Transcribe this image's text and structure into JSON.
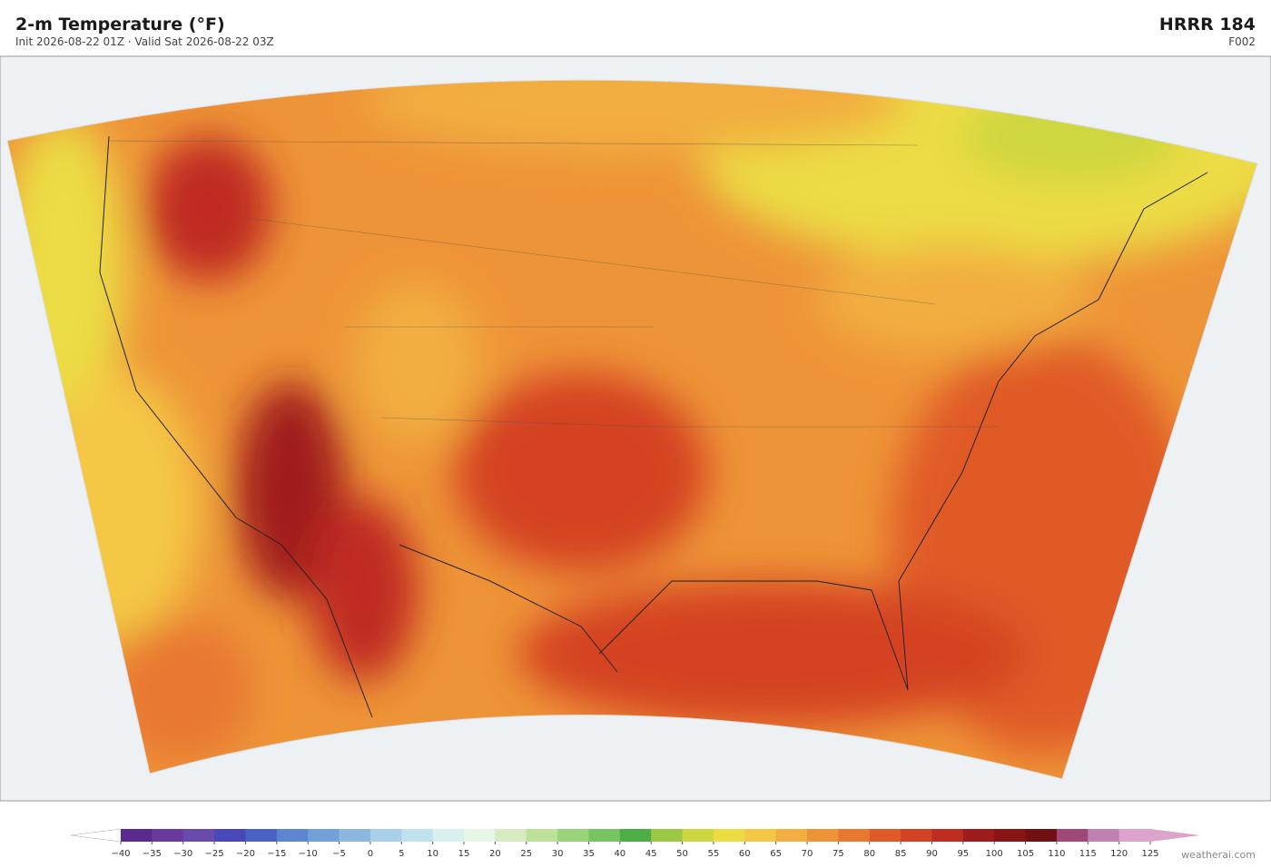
{
  "header": {
    "title": "2-m Temperature  (°F)",
    "subtitle": "Init 2026-08-22 01Z   ·   Valid Sat 2026-08-22 03Z",
    "model": "HRRR  184",
    "forecast_hour": "F002"
  },
  "colorbar": {
    "ticks": [
      "−40",
      "−35",
      "−30",
      "−25",
      "−20",
      "−15",
      "−10",
      "−5",
      "0",
      "5",
      "10",
      "15",
      "20",
      "25",
      "30",
      "35",
      "40",
      "45",
      "50",
      "55",
      "60",
      "65",
      "70",
      "75",
      "80",
      "85",
      "90",
      "95",
      "100",
      "105",
      "110",
      "115",
      "120",
      "125"
    ],
    "colors": [
      "#5b2a8c",
      "#6b3a9c",
      "#6a4aab",
      "#4848b8",
      "#4a62c4",
      "#5c86d0",
      "#72a0d8",
      "#8cb8e0",
      "#a8d0e8",
      "#c0e2ee",
      "#d8f0f0",
      "#e8f6e8",
      "#d6ecc0",
      "#bce29a",
      "#9ad47a",
      "#78c462",
      "#4eae46",
      "#9cc844",
      "#cdd640",
      "#ecdc44",
      "#f4c844",
      "#f2ae40",
      "#ee9438",
      "#e87830",
      "#e05a28",
      "#d44224",
      "#c02c20",
      "#a01c1c",
      "#881414",
      "#701010",
      "#a04878",
      "#c080b0",
      "#dca4cc"
    ],
    "under_color": "#ffffff",
    "over_color": "#dca4cc"
  },
  "footer": {
    "credit": "weatherai.com"
  }
}
